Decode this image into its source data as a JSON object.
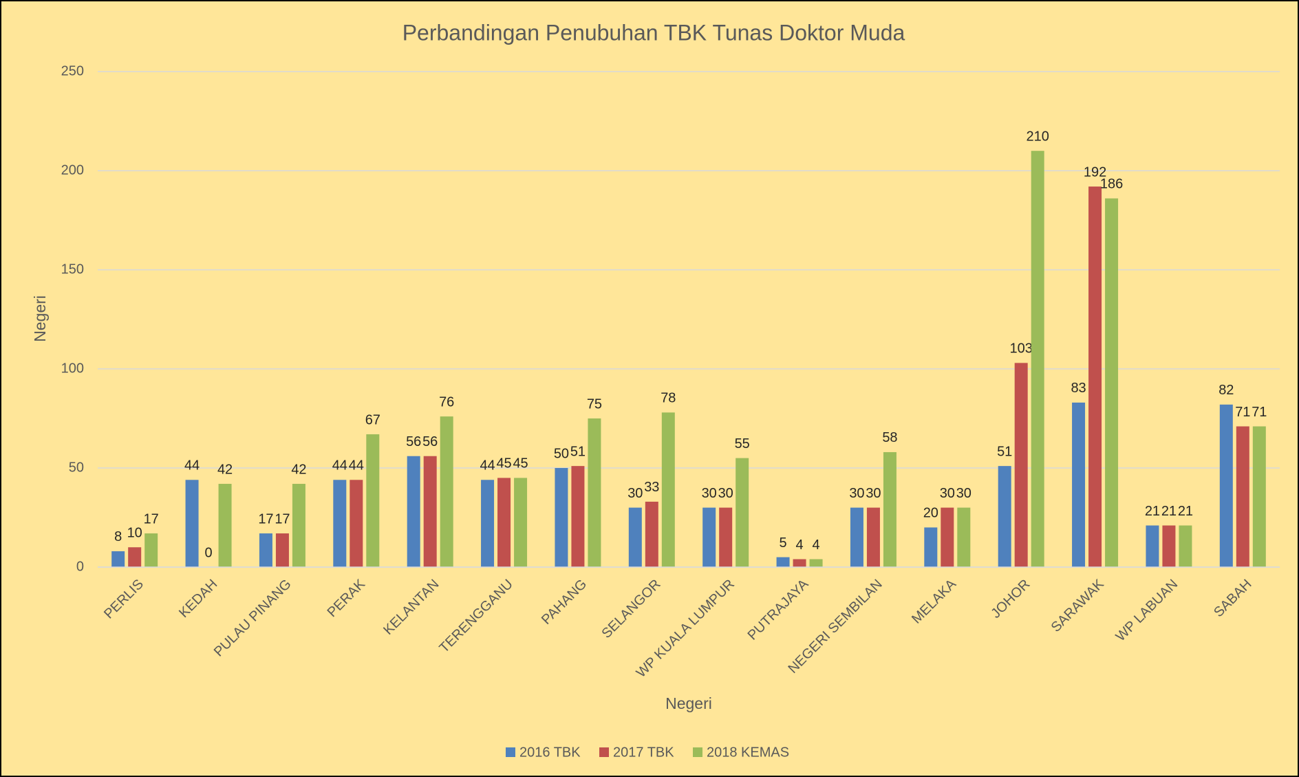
{
  "chart_data": {
    "type": "bar",
    "title": "Perbandingan Penubuhan TBK Tunas Doktor Muda",
    "x_label": "Negeri",
    "y_label": "Negeri",
    "categories": [
      "PERLIS",
      "KEDAH",
      "PULAU PINANG",
      "PERAK",
      "KELANTAN",
      "TERENGGANU",
      "PAHANG",
      "SELANGOR",
      "WP KUALA LUMPUR",
      "PUTRAJAYA",
      "NEGERI SEMBILAN",
      "MELAKA",
      "JOHOR",
      "SARAWAK",
      "WP LABUAN",
      "SABAH"
    ],
    "series": [
      {
        "name": "2016 TBK",
        "color": "#4f81bd",
        "values": [
          8,
          44,
          17,
          44,
          56,
          44,
          50,
          30,
          30,
          5,
          30,
          20,
          51,
          83,
          21,
          82
        ]
      },
      {
        "name": "2017 TBK",
        "color": "#c0504d",
        "values": [
          10,
          0,
          17,
          44,
          56,
          45,
          51,
          33,
          30,
          4,
          30,
          30,
          103,
          192,
          21,
          71
        ]
      },
      {
        "name": "2018 KEMAS",
        "color": "#9bbb59",
        "values": [
          17,
          42,
          42,
          67,
          76,
          45,
          75,
          78,
          55,
          4,
          58,
          30,
          210,
          186,
          21,
          71
        ]
      }
    ],
    "ylim": [
      0,
      250
    ],
    "yticks": [
      0,
      50,
      100,
      150,
      200,
      250
    ],
    "grid": true,
    "legend": "bottom"
  }
}
